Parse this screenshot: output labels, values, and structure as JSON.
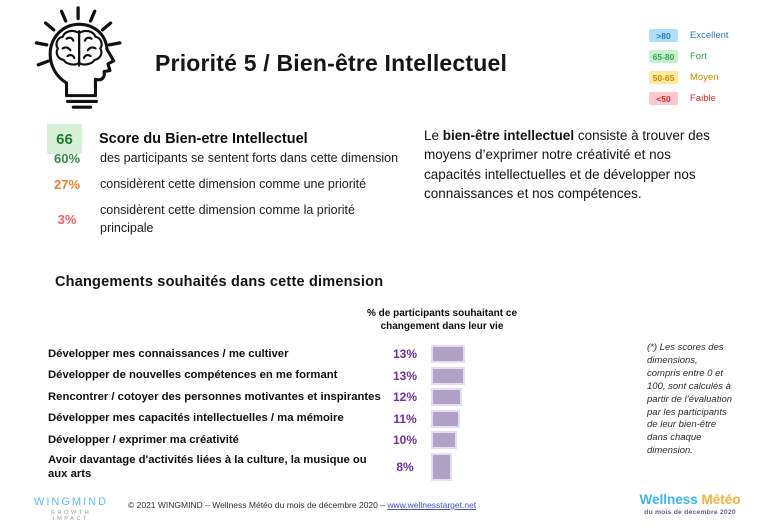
{
  "header": {
    "title": "Priorité 5 / Bien-être Intellectuel"
  },
  "legend": {
    "items": [
      {
        "range": ">80",
        "label": "Excellent",
        "bg": "#AEE0F5",
        "color": "#2E75B6"
      },
      {
        "range": "65-80",
        "label": "Fort",
        "bg": "#C9EFD2",
        "color": "#2FA64B"
      },
      {
        "range": "50-65",
        "label": "Moyen",
        "bg": "#FFE9A0",
        "color": "#BF8F00"
      },
      {
        "range": "<50",
        "label": "Faible",
        "bg": "#FDC8CF",
        "color": "#D93025"
      }
    ]
  },
  "score": {
    "value": "66",
    "label": "Score du Bien-etre Intellectuel",
    "bg": "#D8F0D8",
    "color": "#1E7E2E"
  },
  "stats": [
    {
      "value": "60%",
      "color": "#2E8B3D",
      "text": "des participants se sentent forts dans cette dimension"
    },
    {
      "value": "27%",
      "color": "#ED7D31",
      "text": "considèrent cette dimension comme une priorité"
    },
    {
      "value": "3%",
      "color": "#F4626E",
      "text": "considèrent cette dimension comme la priorité principale"
    }
  ],
  "description": {
    "prefix": "Le ",
    "bold": "bien-être intellectuel",
    "rest": " consiste à trouver des moyens d’exprimer notre créativité et nos capacités intellectuelles et de développer nos connaissances et nos compétences."
  },
  "changes": {
    "section_title": "Changements souhaités dans cette dimension",
    "column_header": "% de participants souhaitant ce changement dans leur vie",
    "value_color": "#7030A0",
    "bar_fill": "#B1A0C7",
    "bar_border": "#E4DFEF"
  },
  "chart_data": {
    "type": "bar",
    "orientation": "horizontal",
    "title": "Changements souhaités dans cette dimension",
    "xlabel": "% de participants souhaitant ce changement dans leur vie",
    "categories": [
      "Développer mes connaissances / me cultiver",
      "Développer de nouvelles compétences en me formant",
      "Rencontrer / cotoyer des personnes motivantes et inspirantes",
      "Développer mes capacités intellectuelles / ma mémoire",
      "Développer / exprimer ma créativité",
      "Avoir davantage d'activités liées à la culture, la musique ou aux arts"
    ],
    "values": [
      13,
      13,
      12,
      11,
      10,
      8
    ],
    "value_labels": [
      "13%",
      "13%",
      "12%",
      "11%",
      "10%",
      "8%"
    ],
    "xlim": [
      0,
      15
    ],
    "grid": false,
    "legend_position": "none"
  },
  "footnote": "(*) Les scores des dimensions, compris entre 0 et 100, sont calculés à partir de l’évaluation par les participants de leur bien-être dans chaque dimension.",
  "footer": {
    "logo_title": "WINGMIND",
    "logo_subtitle": "GROWTH IMPACT",
    "copyright_prefix": "© 2021 WINGMIND – Wellness Météo du mois de décembre 2020 – ",
    "link": "www.wellnesstarget.net",
    "brand_word1": "Wellness",
    "brand_word2": "Météo",
    "brand_subtitle": "du mois de décembre 2020"
  }
}
